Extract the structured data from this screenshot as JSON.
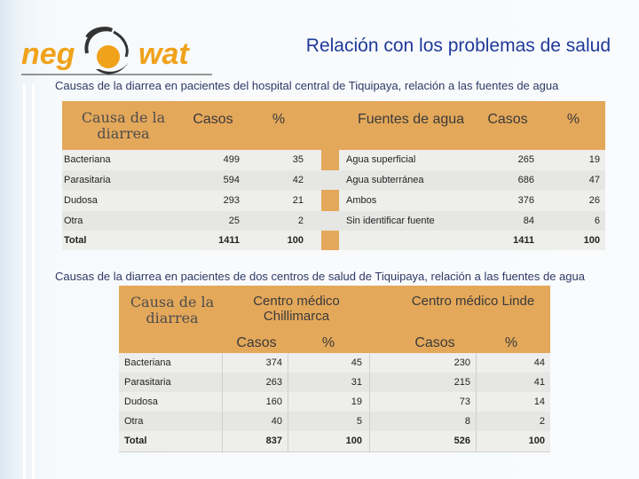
{
  "logo": {
    "left_text": "neg",
    "right_text": "wat",
    "icon": "water-drop-logo-icon"
  },
  "title": "Relación con los problemas de salud",
  "section1": {
    "subtitle": "Causas de la diarrea en pacientes del hospital central de Tiquipaya, relación a las fuentes de agua",
    "headers": {
      "cause": "Causa de la diarrea",
      "cases": "Casos",
      "pct": "%",
      "source": "Fuentes de agua",
      "cases2": "Casos",
      "pct2": "%"
    },
    "rows": [
      {
        "cause": "Bacteriana",
        "cases": "499",
        "pct": "35",
        "source": "Agua superficial",
        "cases2": "265",
        "pct2": "19"
      },
      {
        "cause": "Parasitaria",
        "cases": "594",
        "pct": "42",
        "source": "Agua subterránea",
        "cases2": "686",
        "pct2": "47"
      },
      {
        "cause": "Dudosa",
        "cases": "293",
        "pct": "21",
        "source": "Ambos",
        "cases2": "376",
        "pct2": "26"
      },
      {
        "cause": "Otra",
        "cases": "25",
        "pct": "2",
        "source": "Sin identificar fuente",
        "cases2": "84",
        "pct2": "6"
      },
      {
        "cause": "Total",
        "cases": "1411",
        "pct": "100",
        "source": "",
        "cases2": "1411",
        "pct2": "100"
      }
    ]
  },
  "section2": {
    "subtitle": "Causas de la diarrea en pacientes de dos centros de salud de Tiquipaya, relación a las fuentes de agua",
    "headers": {
      "cause": "Causa de la diarrea",
      "center1": "Centro médico Chillimarca",
      "center2": "Centro médico Linde",
      "cases1": "Casos",
      "pct1": "%",
      "cases2": "Casos",
      "pct2": "%"
    },
    "rows": [
      {
        "cause": "Bacteriana",
        "cases1": "374",
        "pct1": "45",
        "cases2": "230",
        "pct2": "44"
      },
      {
        "cause": "Parasitaria",
        "cases1": "263",
        "pct1": "31",
        "cases2": "215",
        "pct2": "41"
      },
      {
        "cause": "Dudosa",
        "cases1": "160",
        "pct1": "19",
        "cases2": "73",
        "pct2": "14"
      },
      {
        "cause": "Otra",
        "cases1": "40",
        "pct1": "5",
        "cases2": "8",
        "pct2": "2"
      },
      {
        "cause": "Total",
        "cases1": "837",
        "pct1": "100",
        "cases2": "526",
        "pct2": "100"
      }
    ]
  },
  "colors": {
    "header_orange": "#e4a85a",
    "title_blue": "#1f3a99",
    "logo_orange": "#f0a21b"
  }
}
